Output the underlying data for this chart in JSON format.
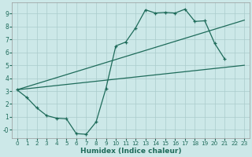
{
  "xlabel": "Humidex (Indice chaleur)",
  "bg_color": "#cce8e8",
  "grid_color": "#aacccc",
  "line_color": "#1e6b5a",
  "xlim": [
    -0.5,
    23.5
  ],
  "ylim": [
    -0.65,
    9.85
  ],
  "xticks": [
    0,
    1,
    2,
    3,
    4,
    5,
    6,
    7,
    8,
    9,
    10,
    11,
    12,
    13,
    14,
    15,
    16,
    17,
    18,
    19,
    20,
    21,
    22,
    23
  ],
  "yticks": [
    0,
    1,
    2,
    3,
    4,
    5,
    6,
    7,
    8,
    9
  ],
  "ytick_labels": [
    "-0",
    "1",
    "2",
    "3",
    "4",
    "5",
    "6",
    "7",
    "8",
    "9"
  ],
  "curve_x": [
    0,
    1,
    2,
    3,
    4,
    5,
    6,
    7,
    8,
    9,
    10,
    11,
    12,
    13,
    14,
    15,
    16,
    17,
    18,
    19,
    20,
    21
  ],
  "curve_y": [
    3.1,
    2.5,
    1.7,
    1.1,
    0.9,
    0.85,
    -0.3,
    -0.35,
    0.6,
    3.2,
    6.5,
    6.8,
    7.9,
    9.3,
    9.05,
    9.1,
    9.05,
    9.35,
    8.4,
    8.45,
    6.7,
    5.5
  ],
  "upper_line_x": [
    0,
    23
  ],
  "upper_line_y": [
    3.1,
    8.5
  ],
  "lower_line_x": [
    0,
    23
  ],
  "lower_line_y": [
    3.1,
    5.0
  ]
}
